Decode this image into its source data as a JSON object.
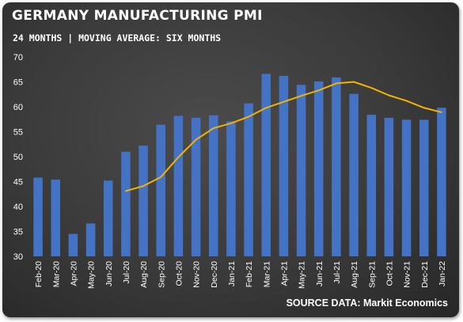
{
  "title": "GERMANY MANUFACTURING PMI",
  "subtitle": "24 MONTHS | MOVING AVERAGE: SIX MONTHS",
  "source": "SOURCE DATA: Markit Economics",
  "colors": {
    "bar": "#4472c4",
    "line": "#f2b400",
    "background": "#3a3a3a",
    "text": "#ffffff"
  },
  "chart_data": {
    "type": "bar",
    "title": "GERMANY MANUFACTURING PMI",
    "subtitle": "24 MONTHS | MOVING AVERAGE: SIX MONTHS",
    "categories": [
      "Feb-20",
      "Mar-20",
      "Apr-20",
      "May-20",
      "Jun-20",
      "Jul-20",
      "Aug-20",
      "Sep-20",
      "Oct-20",
      "Nov-20",
      "Dec-20",
      "Jan-21",
      "Feb-21",
      "Mar-21",
      "Apr-21",
      "May-21",
      "Jun-21",
      "Jul-21",
      "Aug-21",
      "Sep-21",
      "Oct-21",
      "Nov-21",
      "Dec-21",
      "Jan-22"
    ],
    "ylim": [
      30,
      70
    ],
    "yticks": [
      30,
      35,
      40,
      45,
      50,
      55,
      60,
      65,
      70
    ],
    "grid": false,
    "series": [
      {
        "type": "bar",
        "values": [
          45.8,
          45.4,
          34.5,
          36.6,
          45.2,
          51.0,
          52.2,
          56.4,
          58.2,
          57.8,
          58.3,
          57.1,
          60.7,
          66.6,
          66.2,
          64.4,
          65.1,
          65.9,
          62.6,
          58.4,
          57.8,
          57.4,
          57.4,
          59.8
        ]
      },
      {
        "type": "line",
        "values": [
          null,
          null,
          null,
          null,
          null,
          43.1,
          44.1,
          45.9,
          49.9,
          53.4,
          55.7,
          56.7,
          58.0,
          59.8,
          61.0,
          62.2,
          63.3,
          64.7,
          65.0,
          63.8,
          62.3,
          61.2,
          59.8,
          58.9
        ]
      }
    ]
  }
}
